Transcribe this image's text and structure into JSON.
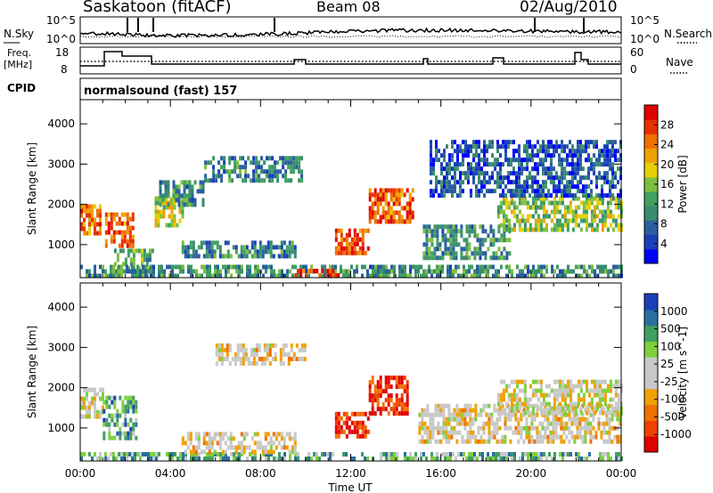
{
  "header": {
    "station": "Saskatoon (fitACF)",
    "beam": "Beam 08",
    "date": "02/Aug/2010"
  },
  "top_panels": {
    "nsky_label": "N.Sky",
    "nsearch_label": "N.Search",
    "noise_ticks": [
      "10^5",
      "10^0"
    ],
    "freq_label_line1": "Freq.",
    "freq_label_line2": "[MHz]",
    "freq_ticks": [
      "18",
      "8"
    ],
    "nave_label": "Nave",
    "nave_ticks": [
      "60",
      "0"
    ],
    "cpid_label": "CPID",
    "cpid_text": "normalsound (fast) 157"
  },
  "chart_data": [
    {
      "type": "heatmap",
      "title": "",
      "xlabel": "Time UT",
      "ylabel": "Slant Range [km]",
      "x_ticks": [
        "00:00",
        "04:00",
        "08:00",
        "12:00",
        "16:00",
        "20:00",
        "00:00"
      ],
      "y_ticks": [
        1000,
        2000,
        3000,
        4000
      ],
      "ylim": [
        180,
        4600
      ],
      "colorbar": {
        "label": "Power [dB]",
        "ticks": [
          "28",
          "24",
          "20",
          "16",
          "12",
          "8",
          "4"
        ],
        "colors": [
          "#0000ff",
          "#1a3fb8",
          "#2a5fa0",
          "#3a8a70",
          "#3fa060",
          "#7fbf3f",
          "#e6d000",
          "#f0a000",
          "#f07000",
          "#e83000",
          "#e00000"
        ]
      },
      "regions": [
        {
          "t0": 0.0,
          "t1": 0.9,
          "r0": 1300,
          "r1": 2000,
          "level": 0.75
        },
        {
          "t0": 1.1,
          "t1": 2.4,
          "r0": 1000,
          "r1": 1800,
          "level": 0.8
        },
        {
          "t0": 1.5,
          "t1": 3.2,
          "r0": 400,
          "r1": 900,
          "level": 0.4
        },
        {
          "t0": 0.0,
          "t1": 24.0,
          "r0": 180,
          "r1": 500,
          "level": 0.35
        },
        {
          "t0": 3.3,
          "t1": 4.6,
          "r0": 1500,
          "r1": 2200,
          "level": 0.55
        },
        {
          "t0": 5.5,
          "t1": 9.8,
          "r0": 2600,
          "r1": 3200,
          "level": 0.3
        },
        {
          "t0": 3.5,
          "t1": 5.5,
          "r0": 2000,
          "r1": 2600,
          "level": 0.35
        },
        {
          "t0": 4.5,
          "t1": 9.5,
          "r0": 700,
          "r1": 1100,
          "level": 0.3
        },
        {
          "t0": 9.5,
          "t1": 11.5,
          "r0": 180,
          "r1": 400,
          "level": 0.9
        },
        {
          "t0": 11.3,
          "t1": 12.8,
          "r0": 800,
          "r1": 1400,
          "level": 0.85
        },
        {
          "t0": 12.8,
          "t1": 14.8,
          "r0": 1600,
          "r1": 2400,
          "level": 0.8
        },
        {
          "t0": 15.2,
          "t1": 19.0,
          "r0": 700,
          "r1": 1500,
          "level": 0.35
        },
        {
          "t0": 18.5,
          "t1": 24.0,
          "r0": 1400,
          "r1": 2200,
          "level": 0.5
        },
        {
          "t0": 15.5,
          "t1": 24.0,
          "r0": 2200,
          "r1": 3600,
          "level": 0.2
        }
      ]
    },
    {
      "type": "heatmap",
      "title": "",
      "xlabel": "Time UT",
      "ylabel": "Slant Range [km]",
      "x_ticks": [
        "00:00",
        "04:00",
        "08:00",
        "12:00",
        "16:00",
        "20:00",
        "00:00"
      ],
      "y_ticks": [
        1000,
        2000,
        3000,
        4000
      ],
      "ylim": [
        180,
        4600
      ],
      "colorbar": {
        "label": "Velocity [m s^-1]",
        "ticks": [
          "1000",
          "500",
          "100",
          "25",
          "-25",
          "-100",
          "-500",
          "-1000"
        ],
        "colors": [
          "#e00000",
          "#f04000",
          "#f07000",
          "#f0a000",
          "#c8c8c8",
          "#c8c8c8",
          "#7fcf3f",
          "#3fa060",
          "#2a6fa0",
          "#1a3fb8"
        ]
      },
      "regions": [
        {
          "t0": 0.0,
          "t1": 1.0,
          "r0": 1300,
          "r1": 2000,
          "level": 0.5
        },
        {
          "t0": 1.0,
          "t1": 2.5,
          "r0": 800,
          "r1": 1800,
          "level": 0.75
        },
        {
          "t0": 0.0,
          "t1": 24.0,
          "r0": 180,
          "r1": 400,
          "level": 0.7
        },
        {
          "t0": 6.0,
          "t1": 10.0,
          "r0": 2600,
          "r1": 3100,
          "level": 0.45
        },
        {
          "t0": 4.5,
          "t1": 9.5,
          "r0": 400,
          "r1": 900,
          "level": 0.45
        },
        {
          "t0": 11.3,
          "t1": 12.8,
          "r0": 800,
          "r1": 1400,
          "level": 0.1
        },
        {
          "t0": 12.8,
          "t1": 14.5,
          "r0": 1400,
          "r1": 2300,
          "level": 0.12
        },
        {
          "t0": 15.0,
          "t1": 24.0,
          "r0": 700,
          "r1": 1600,
          "level": 0.45
        },
        {
          "t0": 18.5,
          "t1": 24.0,
          "r0": 1400,
          "r1": 2200,
          "level": 0.5
        }
      ]
    }
  ]
}
